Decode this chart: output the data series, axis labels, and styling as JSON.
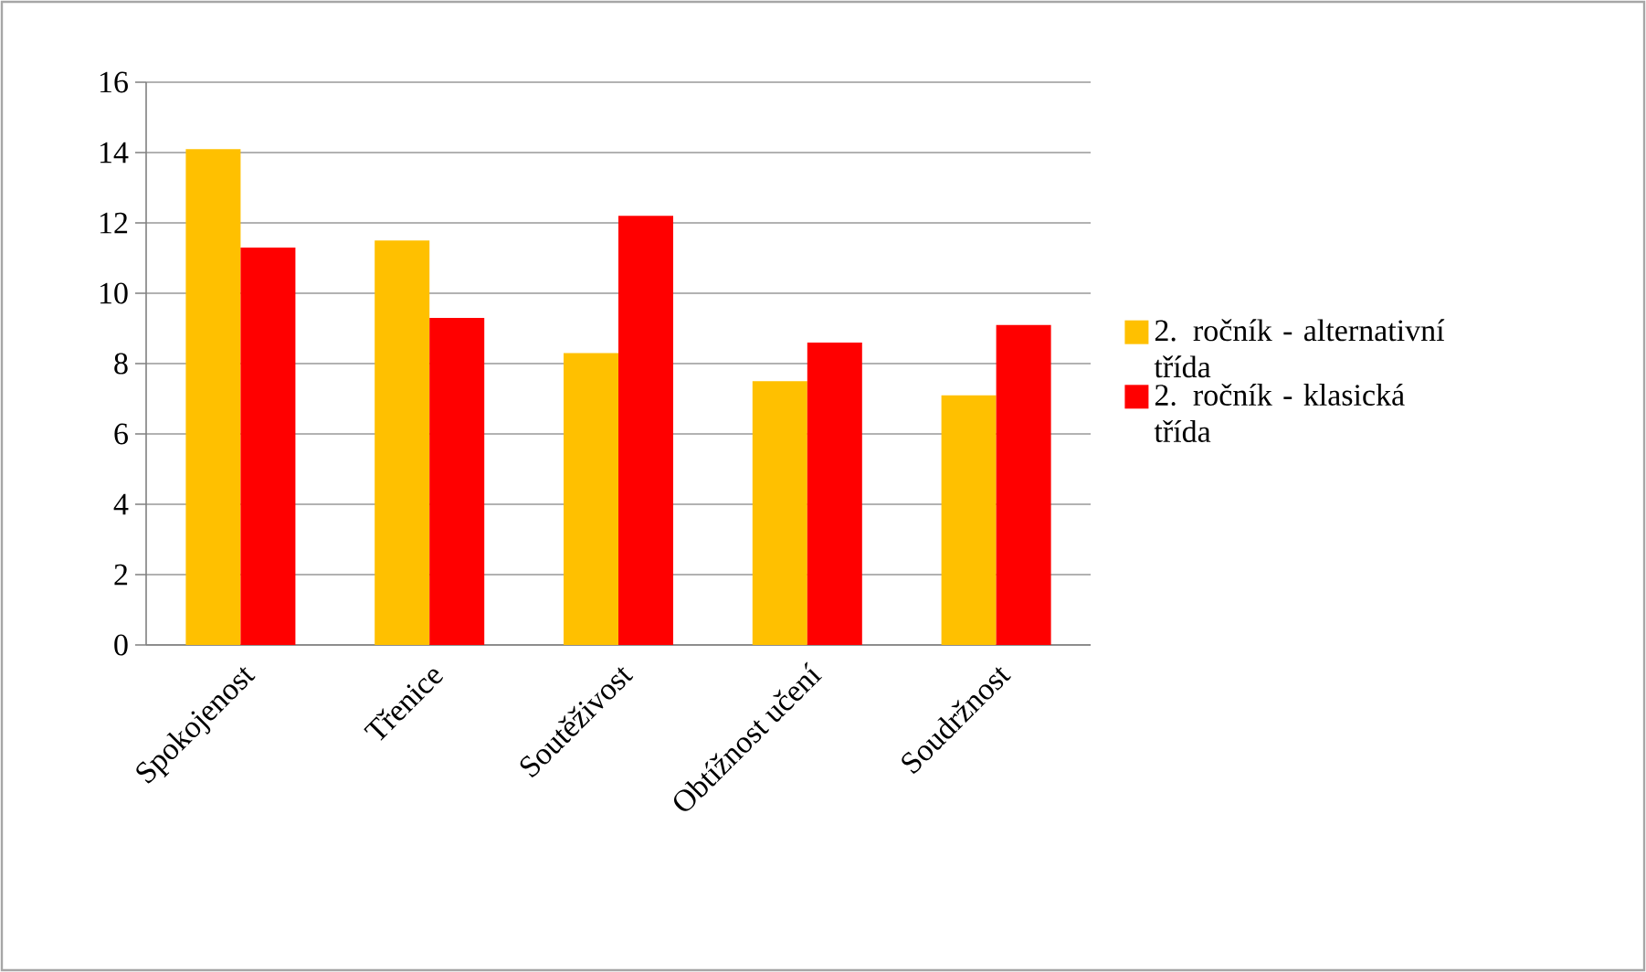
{
  "chart_data": {
    "type": "bar",
    "categories": [
      "Spokojenost",
      "Třenice",
      "Soutěživost",
      "Obtížnost učení",
      "Soudržnost"
    ],
    "series": [
      {
        "name": "2. ročník - alternativní třída",
        "color": "#ffc000",
        "values": [
          14.1,
          11.5,
          8.3,
          7.5,
          7.1
        ]
      },
      {
        "name": "2. ročník - klasická třída",
        "color": "#ff0000",
        "values": [
          11.3,
          9.3,
          12.2,
          8.6,
          9.1
        ]
      }
    ],
    "ylim": [
      0,
      16
    ],
    "yticks": [
      0,
      2,
      4,
      6,
      8,
      10,
      12,
      14,
      16
    ],
    "grid": "y",
    "legend": "right"
  }
}
